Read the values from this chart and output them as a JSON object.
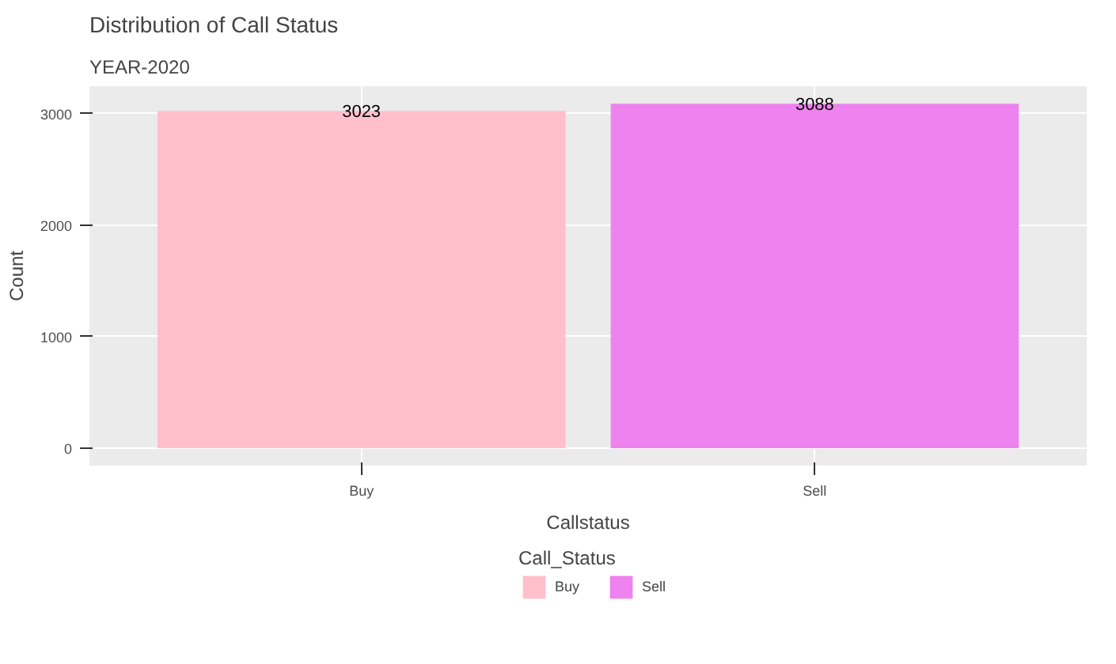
{
  "chart_data": {
    "type": "bar",
    "title": "Distribution of Call Status",
    "subtitle": "YEAR-2020",
    "xlabel": "Callstatus",
    "ylabel": "Count",
    "legend_title": "Call_Status",
    "categories": [
      "Buy",
      "Sell"
    ],
    "series": [
      {
        "name": "Buy",
        "color": "#ffc0cb",
        "values": [
          3023,
          null
        ]
      },
      {
        "name": "Sell",
        "color": "#ee82ee",
        "values": [
          null,
          3088
        ]
      }
    ],
    "ylim": [
      -155,
      3245
    ],
    "yticks": [
      0,
      1000,
      2000,
      3000
    ],
    "grid": true,
    "legend": "bottom",
    "data_labels": true
  }
}
